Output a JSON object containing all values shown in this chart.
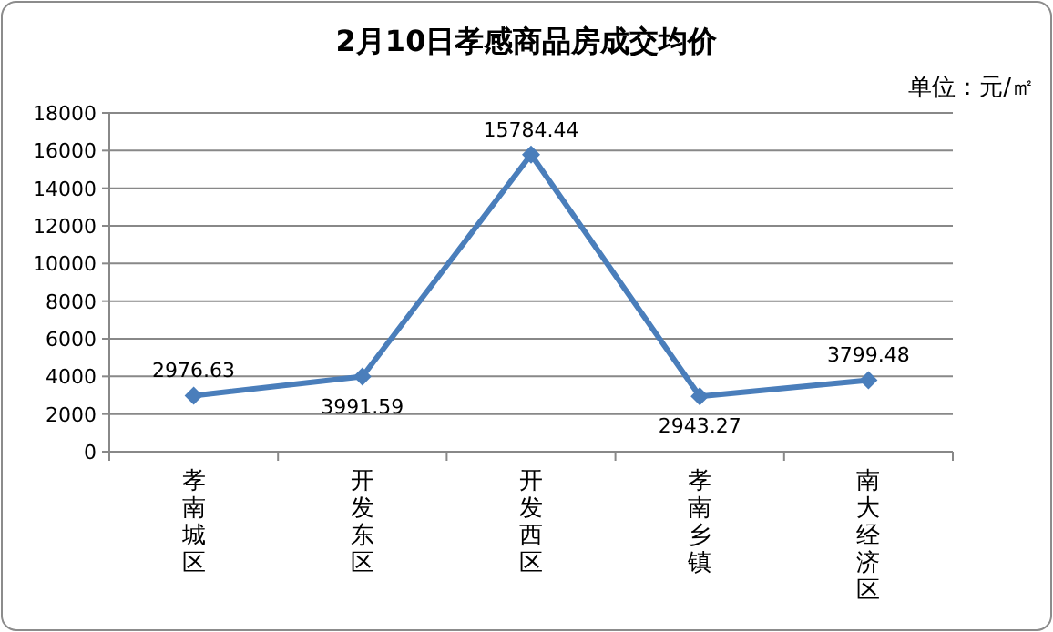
{
  "chart_data": {
    "type": "line",
    "title": "2月10日孝感商品房成交均价",
    "annotations": [
      "单位：元/㎡"
    ],
    "categories": [
      "孝南城区",
      "开发东区",
      "开发西区",
      "孝南乡镇",
      "南大经济区"
    ],
    "series": [
      {
        "color": "#4a7ebb",
        "values": [
          2976.63,
          3991.59,
          15784.44,
          2943.27,
          3799.48
        ]
      }
    ],
    "ylim": [
      0,
      18000
    ],
    "yticks": [
      0,
      2000,
      4000,
      6000,
      8000,
      10000,
      12000,
      14000,
      16000,
      18000
    ],
    "grid": "y",
    "marker": "diamond",
    "data_labels": true
  }
}
